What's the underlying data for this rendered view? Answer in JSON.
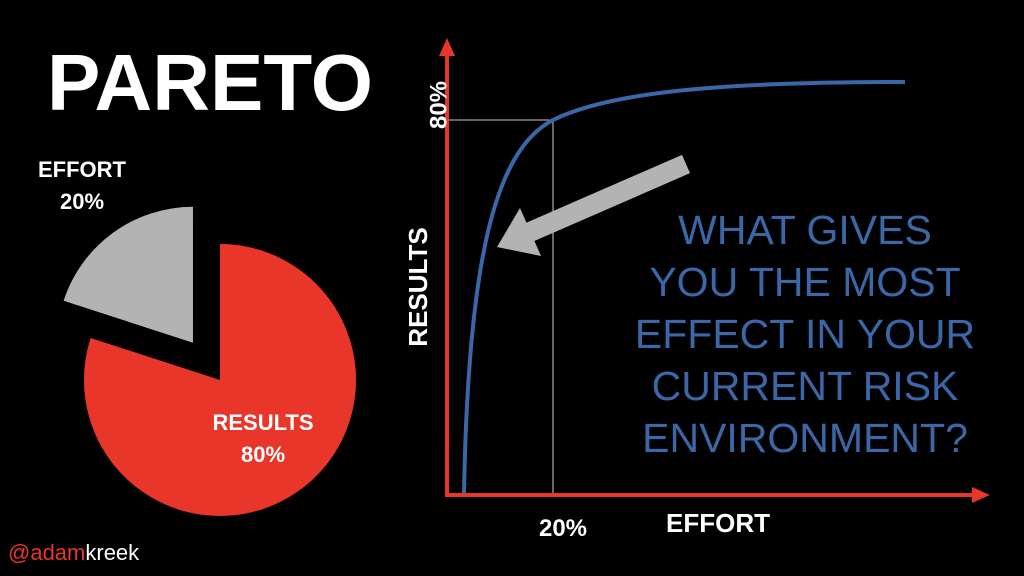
{
  "title": "PARETO",
  "pie": {
    "slices": [
      {
        "label": "EFFORT",
        "value": 20,
        "value_label": "20%",
        "color": "#b3b3b3",
        "exploded": true
      },
      {
        "label": "RESULTS",
        "value": 80,
        "value_label": "80%",
        "color": "#e8362a",
        "exploded": false
      }
    ]
  },
  "graph": {
    "y_label": "RESULTS",
    "x_label": "EFFORT",
    "y_marker": "80%",
    "x_marker": "20%"
  },
  "question": {
    "lines": [
      "WHAT GIVES",
      "YOU THE MOST",
      "EFFECT IN YOUR",
      "CURRENT RISK",
      "ENVIRONMENT?"
    ]
  },
  "handle": {
    "prefix": "@adam",
    "suffix": "kreek"
  }
}
